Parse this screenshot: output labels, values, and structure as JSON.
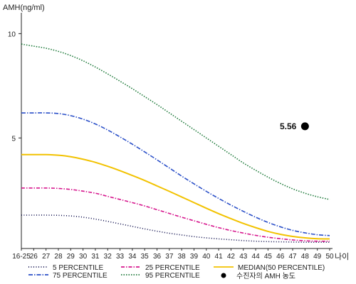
{
  "chart_data": {
    "type": "line",
    "ylabel": "AMH(ng/ml)",
    "xlabel": "나이",
    "x": [
      "16-25",
      "26",
      "27",
      "28",
      "29",
      "30",
      "31",
      "32",
      "33",
      "34",
      "35",
      "36",
      "37",
      "38",
      "39",
      "40",
      "41",
      "42",
      "43",
      "44",
      "45",
      "46",
      "47",
      "48",
      "49",
      "50"
    ],
    "ylim": [
      -0.3,
      11
    ],
    "yticks": [
      5,
      10
    ],
    "grid": false,
    "legend_position": "bottom",
    "series": [
      {
        "name": "5 PERCENTILE",
        "color": "#0a0a4a",
        "dash": "1,2.5",
        "values": [
          1.3,
          1.3,
          1.3,
          1.29,
          1.26,
          1.2,
          1.11,
          1.0,
          0.88,
          0.76,
          0.64,
          0.53,
          0.43,
          0.35,
          0.27,
          0.21,
          0.16,
          0.12,
          0.08,
          0.05,
          0.03,
          0.02,
          0.01,
          0.0,
          0.0,
          0.0
        ]
      },
      {
        "name": "25 PERCENTILE",
        "color": "#d6148c",
        "dash": "5,2,1.5,2",
        "values": [
          2.6,
          2.6,
          2.6,
          2.58,
          2.53,
          2.45,
          2.35,
          2.2,
          2.05,
          1.9,
          1.74,
          1.56,
          1.38,
          1.2,
          1.03,
          0.86,
          0.7,
          0.56,
          0.44,
          0.33,
          0.24,
          0.17,
          0.11,
          0.07,
          0.05,
          0.05
        ]
      },
      {
        "name": "MEDIAN(50 PERCENTILE)",
        "color": "#f2c200",
        "dash": "",
        "values": [
          4.2,
          4.2,
          4.2,
          4.17,
          4.1,
          3.98,
          3.83,
          3.64,
          3.43,
          3.2,
          2.96,
          2.7,
          2.44,
          2.17,
          1.9,
          1.63,
          1.37,
          1.13,
          0.9,
          0.7,
          0.52,
          0.38,
          0.28,
          0.21,
          0.17,
          0.16
        ]
      },
      {
        "name": "75 PERCENTILE",
        "color": "#2a4fc8",
        "dash": "6,2,1.5,2",
        "values": [
          6.2,
          6.2,
          6.2,
          6.17,
          6.07,
          5.9,
          5.67,
          5.38,
          5.05,
          4.7,
          4.33,
          3.95,
          3.56,
          3.17,
          2.8,
          2.44,
          2.1,
          1.78,
          1.48,
          1.2,
          0.95,
          0.74,
          0.57,
          0.45,
          0.36,
          0.32
        ]
      },
      {
        "name": "95 PERCENTILE",
        "color": "#1e7a3a",
        "dash": "1.5,2",
        "values": [
          9.5,
          9.4,
          9.3,
          9.15,
          8.95,
          8.7,
          8.4,
          8.07,
          7.72,
          7.36,
          6.98,
          6.6,
          6.2,
          5.8,
          5.4,
          5.0,
          4.6,
          4.2,
          3.8,
          3.45,
          3.12,
          2.82,
          2.56,
          2.35,
          2.18,
          2.05
        ]
      }
    ],
    "annotations": [
      {
        "label": "5.56",
        "x": "48",
        "y": 5.56,
        "legend": "수진자의 AMH 농도"
      }
    ]
  }
}
